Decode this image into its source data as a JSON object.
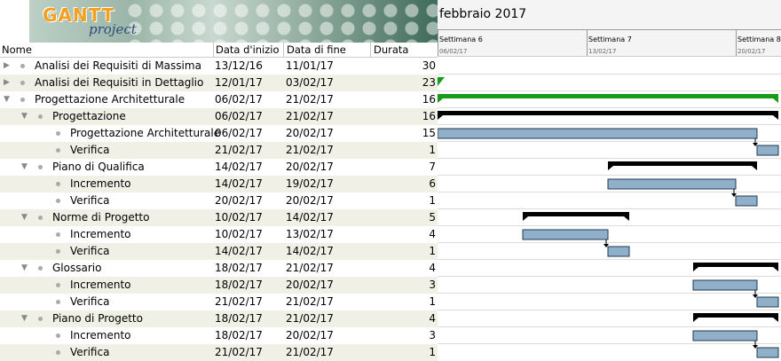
{
  "logo": {
    "title": "GANTT",
    "subtitle": "project"
  },
  "columns": {
    "name": "Nome",
    "start": "Data d'inizio",
    "end": "Data di fine",
    "duration": "Durata"
  },
  "chart_header": {
    "month": "febbraio 2017",
    "weeks": [
      {
        "label": "Settimana 6",
        "date": "06/02/17"
      },
      {
        "label": "Settimana 7",
        "date": "13/02/17"
      },
      {
        "label": "Settimana 8",
        "date": "20/02/17"
      }
    ]
  },
  "tasks": [
    {
      "name": "Analisi dei Requisiti di Massima",
      "start": "13/12/16",
      "end": "11/01/17",
      "duration": "30",
      "level": 0,
      "expandable": true,
      "type": "none"
    },
    {
      "name": "Analisi dei Requisiti in Dettaglio",
      "start": "12/01/17",
      "end": "03/02/17",
      "duration": "23",
      "level": 0,
      "expandable": true,
      "type": "edge"
    },
    {
      "name": "Progettazione Architetturale",
      "start": "06/02/17",
      "end": "21/02/17",
      "duration": "16",
      "level": 0,
      "expandable": true,
      "type": "green"
    },
    {
      "name": "Progettazione",
      "start": "06/02/17",
      "end": "21/02/17",
      "duration": "16",
      "level": 1,
      "expandable": true,
      "type": "summary"
    },
    {
      "name": "Progettazione Architetturale",
      "start": "06/02/17",
      "end": "20/02/17",
      "duration": "15",
      "level": 2,
      "expandable": false,
      "type": "task"
    },
    {
      "name": "Verifica",
      "start": "21/02/17",
      "end": "21/02/17",
      "duration": "1",
      "level": 2,
      "expandable": false,
      "type": "task"
    },
    {
      "name": "Piano di Qualifica",
      "start": "14/02/17",
      "end": "20/02/17",
      "duration": "7",
      "level": 1,
      "expandable": true,
      "type": "summary"
    },
    {
      "name": "Incremento",
      "start": "14/02/17",
      "end": "19/02/17",
      "duration": "6",
      "level": 2,
      "expandable": false,
      "type": "task"
    },
    {
      "name": "Verifica",
      "start": "20/02/17",
      "end": "20/02/17",
      "duration": "1",
      "level": 2,
      "expandable": false,
      "type": "task"
    },
    {
      "name": "Norme di Progetto",
      "start": "10/02/17",
      "end": "14/02/17",
      "duration": "5",
      "level": 1,
      "expandable": true,
      "type": "summary"
    },
    {
      "name": "Incremento",
      "start": "10/02/17",
      "end": "13/02/17",
      "duration": "4",
      "level": 2,
      "expandable": false,
      "type": "task"
    },
    {
      "name": "Verifica",
      "start": "14/02/17",
      "end": "14/02/17",
      "duration": "1",
      "level": 2,
      "expandable": false,
      "type": "task"
    },
    {
      "name": "Glossario",
      "start": "18/02/17",
      "end": "21/02/17",
      "duration": "4",
      "level": 1,
      "expandable": true,
      "type": "summary"
    },
    {
      "name": "Incremento",
      "start": "18/02/17",
      "end": "20/02/17",
      "duration": "3",
      "level": 2,
      "expandable": false,
      "type": "task"
    },
    {
      "name": "Verifica",
      "start": "21/02/17",
      "end": "21/02/17",
      "duration": "1",
      "level": 2,
      "expandable": false,
      "type": "task"
    },
    {
      "name": "Piano di Progetto",
      "start": "18/02/17",
      "end": "21/02/17",
      "duration": "4",
      "level": 1,
      "expandable": true,
      "type": "summary"
    },
    {
      "name": "Incremento",
      "start": "18/02/17",
      "end": "20/02/17",
      "duration": "3",
      "level": 2,
      "expandable": false,
      "type": "task"
    },
    {
      "name": "Verifica",
      "start": "21/02/17",
      "end": "21/02/17",
      "duration": "1",
      "level": 2,
      "expandable": false,
      "type": "task"
    }
  ],
  "colors": {
    "task_fill": "#8fb0c8",
    "task_border": "#1f3a55",
    "summary": "#000000",
    "phase": "#179c17",
    "alt_row": "#f0f0e6"
  }
}
